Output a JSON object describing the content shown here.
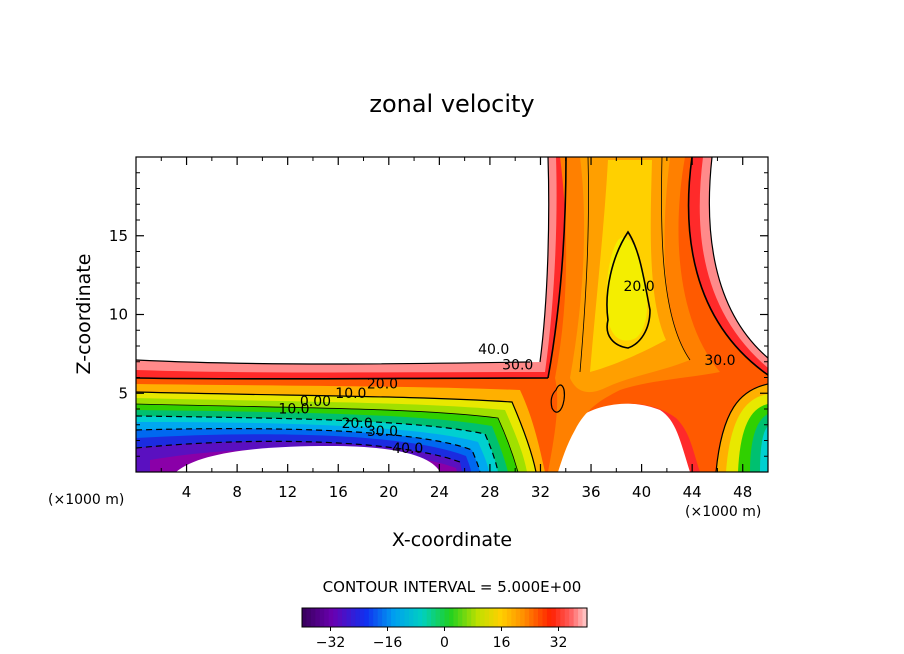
{
  "chart_data": {
    "type": "contour",
    "title": "zonal velocity",
    "xlabel": "X-coordinate",
    "ylabel": "Z-coordinate",
    "x_unit": "(×1000 m)",
    "x_unit_right": "(×1000 m)",
    "xlim": [
      0,
      50
    ],
    "ylim": [
      0,
      20
    ],
    "x_ticks": [
      4,
      8,
      12,
      16,
      20,
      24,
      28,
      32,
      36,
      40,
      44,
      48
    ],
    "x_tick_labels": [
      "4",
      "8",
      "12",
      "16",
      "20",
      "24",
      "28",
      "32",
      "36",
      "40",
      "44",
      "48"
    ],
    "y_ticks": [
      5,
      10,
      15
    ],
    "y_tick_labels": [
      "5",
      "10",
      "15"
    ],
    "contour_interval_label": "CONTOUR INTERVAL = 5.000E+00",
    "contour_interval": 5.0,
    "contour_labels": [
      {
        "text": "40.0",
        "x": 28.3,
        "z": 7.5
      },
      {
        "text": "30.0",
        "x": 30.2,
        "z": 6.5
      },
      {
        "text": "20.0",
        "x": 39.8,
        "z": 11.5
      },
      {
        "text": "30.0",
        "x": 46.2,
        "z": 6.8
      },
      {
        "text": "20.0",
        "x": 19.5,
        "z": 5.3
      },
      {
        "text": "10.0",
        "x": 17.0,
        "z": 4.7
      },
      {
        "text": "0.00",
        "x": 14.2,
        "z": 4.2
      },
      {
        "text": "10.0",
        "x": 12.5,
        "z": 3.7
      },
      {
        "text": "20.0",
        "x": 17.5,
        "z": 2.8
      },
      {
        "text": "30.0",
        "x": 19.5,
        "z": 2.3
      },
      {
        "text": "40.0",
        "x": 21.5,
        "z": 1.2
      }
    ],
    "colorbar": {
      "min": -40,
      "max": 40,
      "tick_values": [
        -32,
        -16,
        0,
        16,
        32
      ],
      "tick_labels": [
        "−32",
        "−16",
        "0",
        "16",
        "32"
      ]
    }
  }
}
